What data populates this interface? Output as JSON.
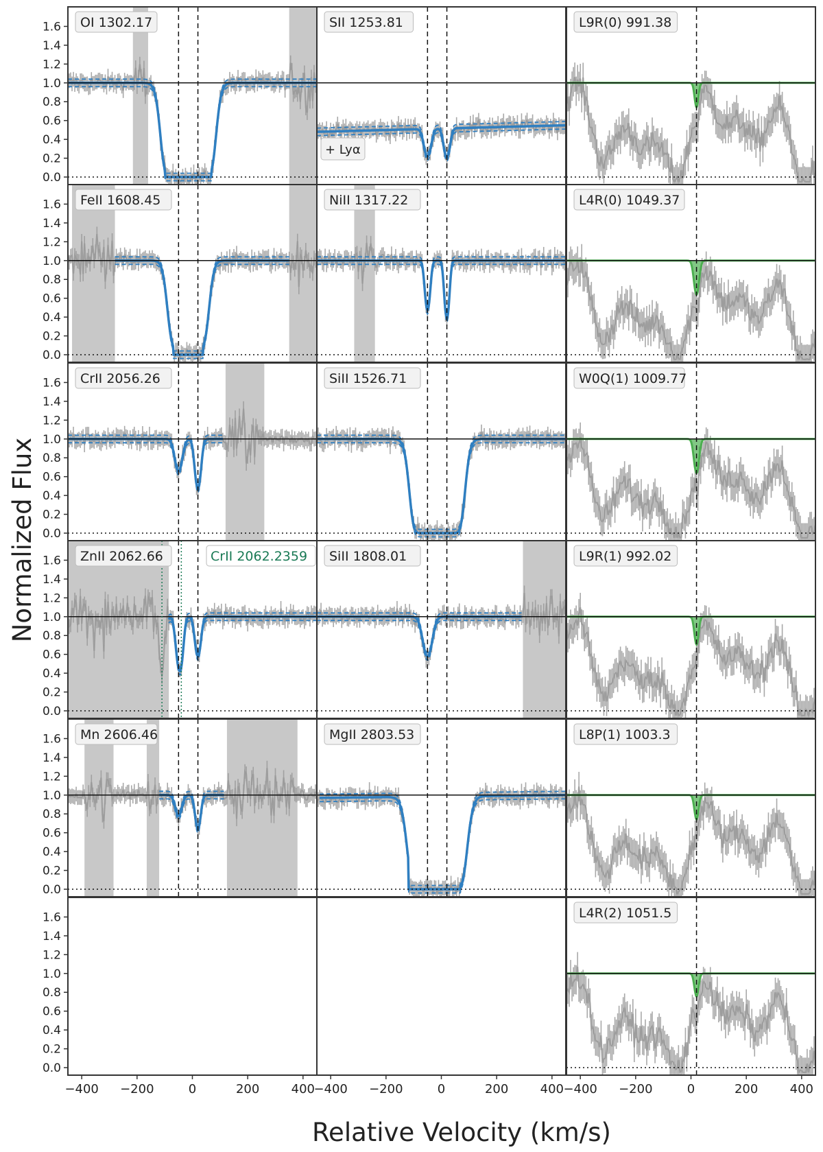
{
  "figure": {
    "xlabel": "Relative Velocity (km/s)",
    "ylabel": "Normalized Flux"
  },
  "chart_data": {
    "type": "line",
    "xlim": [
      -450,
      450
    ],
    "ylim": [
      -0.08,
      1.72
    ],
    "xticks": [
      -400,
      -200,
      0,
      200,
      400
    ],
    "yticks": [
      0.0,
      0.2,
      0.4,
      0.6,
      0.8,
      1.0,
      1.2,
      1.4,
      1.6
    ],
    "grid": false,
    "colors": {
      "fit": "#2f7fc1",
      "h2_model": "#4caf50",
      "data": "#9a9a9a",
      "masked": "#c8c8c8",
      "annotation_green": "#1a7a55"
    },
    "component_velocities_metal": [
      -50,
      20
    ],
    "component_velocity_h2": 20,
    "panels": [
      {
        "id": "p00",
        "row": 0,
        "col": 0,
        "label": "OI 1302.17",
        "masks": [
          [
            -215,
            -160
          ],
          [
            350,
            450
          ]
        ],
        "components": [
          [
            -50,
            12,
            40
          ],
          [
            20,
            12,
            40
          ]
        ],
        "continuum_left": 1.0,
        "continuum_right": 1.0,
        "saturated": [
          -100,
          70
        ],
        "fit_range": [
          -450,
          450
        ],
        "model": "metal"
      },
      {
        "id": "p01",
        "row": 0,
        "col": 1,
        "label": "SII 1253.81",
        "note": "+ Lyα",
        "masks": [],
        "components": [
          [
            -50,
            0.85,
            16
          ],
          [
            20,
            0.9,
            14
          ]
        ],
        "continuum_left": 0.48,
        "continuum_right": 0.55,
        "fit_range": [
          -450,
          450
        ],
        "model": "metal"
      },
      {
        "id": "p02",
        "row": 0,
        "col": 2,
        "label": "L9R(0) 991.38",
        "components": [
          [
            20,
            0.3,
            9
          ]
        ],
        "model": "h2"
      },
      {
        "id": "p10",
        "row": 1,
        "col": 0,
        "label": "FeII 1608.45",
        "masks": [
          [
            -435,
            -280
          ],
          [
            350,
            450
          ]
        ],
        "components": [
          [
            -50,
            3.5,
            32
          ],
          [
            20,
            3.5,
            32
          ]
        ],
        "continuum_left": 1.0,
        "continuum_right": 1.0,
        "saturated": [
          -70,
          40
        ],
        "fit_range": [
          -280,
          350
        ],
        "model": "metal"
      },
      {
        "id": "p11",
        "row": 1,
        "col": 1,
        "label": "NiII 1317.22",
        "masks": [
          [
            -315,
            -240
          ]
        ],
        "components": [
          [
            -50,
            0.75,
            12
          ],
          [
            20,
            0.95,
            11
          ]
        ],
        "continuum_left": 1.0,
        "continuum_right": 1.0,
        "fit_range": [
          -450,
          450
        ],
        "model": "metal"
      },
      {
        "id": "p12",
        "row": 1,
        "col": 2,
        "label": "L4R(0) 1049.37",
        "components": [
          [
            20,
            0.45,
            12
          ]
        ],
        "model": "h2"
      },
      {
        "id": "p20",
        "row": 2,
        "col": 0,
        "label": "CrII 2056.26",
        "masks": [
          [
            120,
            260
          ]
        ],
        "components": [
          [
            -50,
            0.42,
            18
          ],
          [
            20,
            0.75,
            14
          ]
        ],
        "continuum_left": 1.0,
        "continuum_right": 1.0,
        "fit_range": [
          -450,
          110
        ],
        "model": "metal"
      },
      {
        "id": "p21",
        "row": 2,
        "col": 1,
        "label": "SiII 1526.71",
        "masks": [],
        "components": [
          [
            -50,
            12,
            40
          ],
          [
            20,
            12,
            40
          ]
        ],
        "continuum_left": 1.0,
        "continuum_right": 1.0,
        "saturated": [
          -80,
          50
        ],
        "fit_range": [
          -450,
          450
        ],
        "model": "metal"
      },
      {
        "id": "p22",
        "row": 2,
        "col": 2,
        "label": "W0Q(1) 1009.77",
        "components": [
          [
            20,
            0.45,
            12
          ]
        ],
        "model": "h2"
      },
      {
        "id": "p30",
        "row": 3,
        "col": 0,
        "label": "ZnII 2062.66",
        "label2": "CrII 2062.2359",
        "masks": [
          [
            -450,
            -85
          ]
        ],
        "components": [
          [
            -50,
            0.6,
            14
          ],
          [
            20,
            0.55,
            14
          ],
          [
            -110,
            0.7,
            14
          ],
          [
            -40,
            0.4,
            12
          ]
        ],
        "continuum_left": 1.0,
        "continuum_right": 1.0,
        "fit_range": [
          -85,
          450
        ],
        "model": "metal"
      },
      {
        "id": "p31",
        "row": 3,
        "col": 1,
        "label": "SiII 1808.01",
        "masks": [
          [
            295,
            450
          ]
        ],
        "components": [
          [
            -50,
            0.55,
            22
          ]
        ],
        "continuum_left": 1.0,
        "continuum_right": 1.0,
        "fit_range": [
          -450,
          290
        ],
        "model": "metal"
      },
      {
        "id": "p32",
        "row": 3,
        "col": 2,
        "label": "L9R(1) 992.02",
        "components": [
          [
            20,
            0.35,
            10
          ]
        ],
        "model": "h2"
      },
      {
        "id": "p40",
        "row": 4,
        "col": 0,
        "label": "Mn 2606.46",
        "masks": [
          [
            -390,
            -285
          ],
          [
            -165,
            -120
          ],
          [
            125,
            380
          ]
        ],
        "components": [
          [
            -50,
            0.25,
            16
          ],
          [
            20,
            0.45,
            13
          ]
        ],
        "continuum_left": 1.0,
        "continuum_right": 1.0,
        "fit_range": [
          -120,
          115
        ],
        "model": "metal"
      },
      {
        "id": "p41",
        "row": 4,
        "col": 1,
        "label": "MgII 2803.53",
        "masks": [],
        "components": [
          [
            -50,
            12,
            45
          ],
          [
            20,
            12,
            45
          ]
        ],
        "continuum_left": 0.97,
        "continuum_right": 1.0,
        "saturated": [
          -120,
          70
        ],
        "fit_range": [
          -440,
          450
        ],
        "model": "metal"
      },
      {
        "id": "p42",
        "row": 4,
        "col": 2,
        "label": "L8P(1) 1003.3",
        "components": [
          [
            20,
            0.3,
            10
          ]
        ],
        "model": "h2"
      },
      {
        "id": "p50",
        "row": 5,
        "col": 0,
        "model": "empty"
      },
      {
        "id": "p51",
        "row": 5,
        "col": 1,
        "model": "empty"
      },
      {
        "id": "p52",
        "row": 5,
        "col": 2,
        "label": "L4R(2) 1051.5",
        "components": [
          [
            20,
            0.28,
            10
          ]
        ],
        "model": "h2"
      }
    ]
  }
}
